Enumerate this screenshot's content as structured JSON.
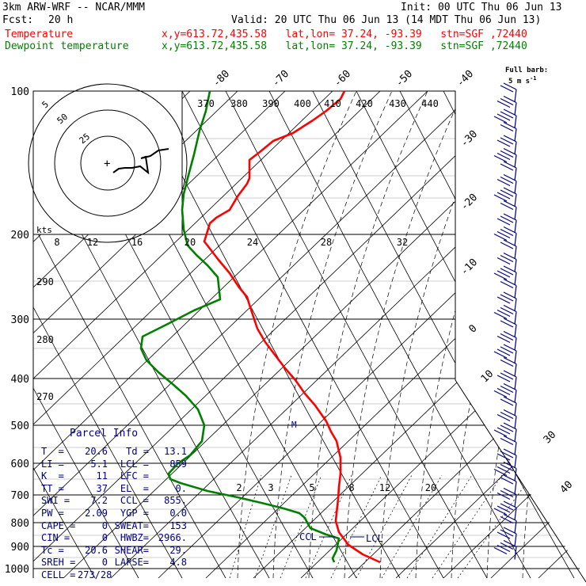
{
  "header": {
    "model": "3km ARW-WRF -- NCAR/MMM",
    "init": "Init: 00 UTC Thu 06 Jun 13",
    "fcst_label": "Fcst:",
    "fcst_value": "20 h",
    "valid": "Valid: 20 UTC Thu 06 Jun 13 (14 MDT Thu 06 Jun 13)",
    "temp_name": "Temperature",
    "dew_name": "Dewpoint temperature",
    "location": "x,y=613.72,435.58   lat,lon= 37.24, -93.39   stn=SGF ,72440"
  },
  "colors": {
    "temperature": "#ff0000",
    "dewpoint": "#008000",
    "text": "#000080",
    "axis": "#000000"
  },
  "barb_legend": {
    "line1": "Full barb:",
    "line2": "5 m s",
    "exp": "-1"
  },
  "hodograph": {
    "rings": [
      "5",
      "25",
      "50"
    ],
    "axis_label": "kts"
  },
  "parcel_info": {
    "title": "Parcel Info",
    "rows": [
      [
        "T  =",
        "20.6",
        "Td =",
        "13.1"
      ],
      [
        "LI =",
        "5.1",
        "LCL =",
        "859"
      ],
      [
        "K  =",
        "11",
        "LFC =",
        ""
      ],
      [
        "TT =",
        "37",
        "EL  =",
        "0."
      ],
      [
        "SWI =",
        "7.2",
        "CCL =",
        "855."
      ],
      [
        "PW =",
        "2.09",
        "YGP =",
        "0.0"
      ],
      [
        "CAPE =",
        "0",
        "SWEAT=",
        "153"
      ],
      [
        "CIN =",
        "0",
        "HWBZ=",
        "2966."
      ],
      [
        "Tc =",
        "20.6",
        "SHEAR=",
        "29."
      ],
      [
        "SREH =",
        "0",
        "LAPSE=",
        "4.8"
      ],
      [
        "CELL =",
        "273/28",
        "",
        ""
      ]
    ]
  },
  "chart_data": {
    "type": "line",
    "title": "",
    "ylabel": "",
    "xlabel": "",
    "pressure_levels": [
      "100",
      "200",
      "300",
      "400",
      "500",
      "600",
      "700",
      "800",
      "900",
      "1000"
    ],
    "isotherm_labels": [
      "-80",
      "-70",
      "-60",
      "-50",
      "-40",
      "-30",
      "-20",
      "-10",
      "0",
      "10",
      "30",
      "40"
    ],
    "theta_labels": [
      "370",
      "380",
      "390",
      "400",
      "410",
      "420",
      "430",
      "440",
      "290",
      "280",
      "270"
    ],
    "mixing_ratio_labels": [
      "8",
      "12",
      "16",
      "20",
      "24",
      "28",
      "32",
      "2",
      "3",
      "5",
      "8",
      "12",
      "20"
    ],
    "annotations": [
      "CCL",
      "LCL",
      "M"
    ],
    "series": [
      {
        "name": "Temperature",
        "points": [
          [
            435,
            115
          ],
          [
            430,
            125
          ],
          [
            412,
            140
          ],
          [
            395,
            152
          ],
          [
            370,
            168
          ],
          [
            345,
            178
          ],
          [
            328,
            192
          ],
          [
            315,
            202
          ],
          [
            315,
            225
          ],
          [
            312,
            232
          ],
          [
            300,
            248
          ],
          [
            290,
            265
          ],
          [
            273,
            275
          ],
          [
            265,
            282
          ],
          [
            262,
            292
          ],
          [
            258,
            305
          ],
          [
            262,
            310
          ],
          [
            275,
            327
          ],
          [
            290,
            345
          ],
          [
            302,
            363
          ],
          [
            312,
            375
          ],
          [
            315,
            385
          ],
          [
            320,
            400
          ],
          [
            325,
            415
          ],
          [
            335,
            432
          ],
          [
            347,
            448
          ],
          [
            360,
            465
          ],
          [
            373,
            480
          ],
          [
            385,
            497
          ],
          [
            398,
            512
          ],
          [
            412,
            532
          ],
          [
            418,
            545
          ],
          [
            425,
            557
          ],
          [
            428,
            570
          ],
          [
            430,
            578
          ],
          [
            430,
            598
          ],
          [
            428,
            615
          ],
          [
            427,
            630
          ],
          [
            425,
            648
          ],
          [
            424,
            658
          ],
          [
            428,
            672
          ],
          [
            440,
            688
          ],
          [
            458,
            700
          ],
          [
            480,
            710
          ]
        ]
      },
      {
        "name": "Dewpoint temperature",
        "points": [
          [
            265,
            115
          ],
          [
            260,
            140
          ],
          [
            252,
            165
          ],
          [
            245,
            195
          ],
          [
            237,
            225
          ],
          [
            232,
            245
          ],
          [
            230,
            265
          ],
          [
            232,
            290
          ],
          [
            237,
            310
          ],
          [
            248,
            322
          ],
          [
            262,
            335
          ],
          [
            275,
            350
          ],
          [
            278,
            378
          ],
          [
            245,
            392
          ],
          [
            210,
            410
          ],
          [
            180,
            425
          ],
          [
            178,
            440
          ],
          [
            185,
            455
          ],
          [
            200,
            470
          ],
          [
            218,
            485
          ],
          [
            235,
            500
          ],
          [
            250,
            517
          ],
          [
            258,
            537
          ],
          [
            255,
            557
          ],
          [
            240,
            575
          ],
          [
            225,
            585
          ],
          [
            213,
            598
          ],
          [
            215,
            605
          ],
          [
            228,
            610
          ],
          [
            262,
            620
          ],
          [
            300,
            628
          ],
          [
            330,
            635
          ],
          [
            358,
            642
          ],
          [
            378,
            648
          ],
          [
            385,
            654
          ],
          [
            388,
            660
          ],
          [
            392,
            667
          ],
          [
            412,
            675
          ],
          [
            428,
            680
          ],
          [
            425,
            695
          ],
          [
            420,
            705
          ],
          [
            422,
            710
          ]
        ]
      }
    ],
    "wind_barbs_count": 37
  }
}
